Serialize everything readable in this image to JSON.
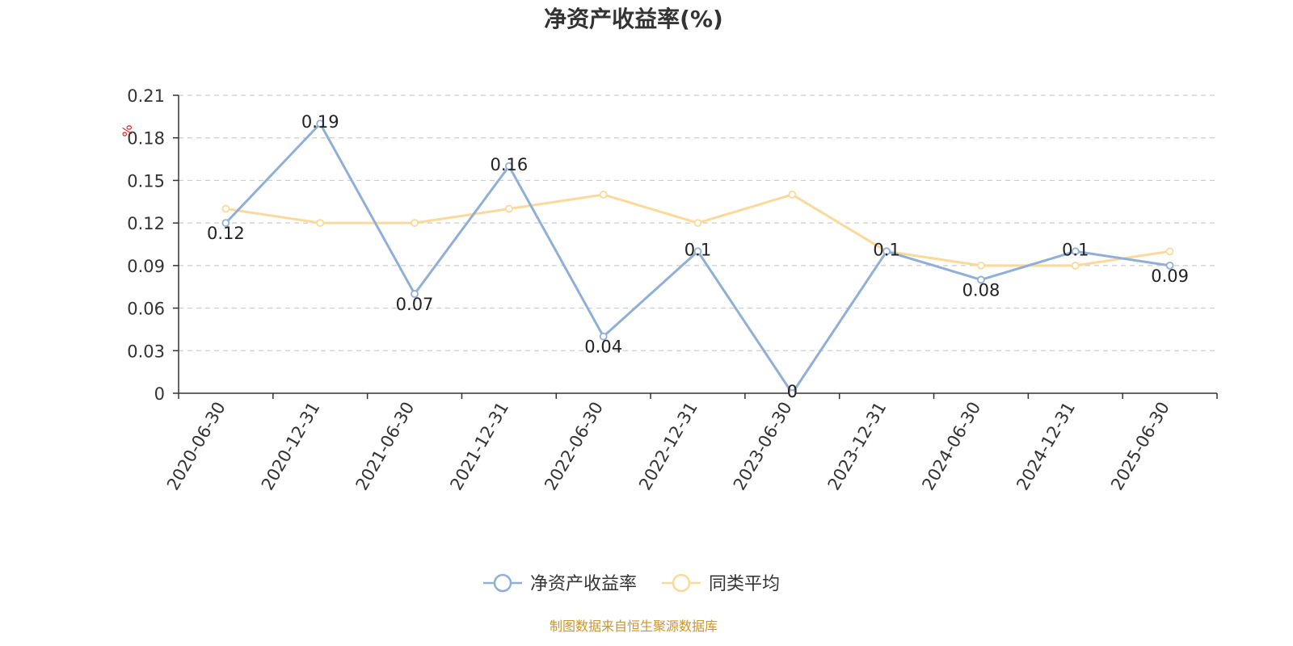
{
  "chart_data": {
    "type": "line",
    "title": "净资产收益率(%)",
    "ylabel": "%",
    "ylim": [
      0,
      0.21
    ],
    "yticks": [
      "0",
      "0.03",
      "0.06",
      "0.09",
      "0.12",
      "0.15",
      "0.18",
      "0.21"
    ],
    "grid": true,
    "legend_position": "bottom",
    "categories": [
      "2020-06-30",
      "2020-12-31",
      "2021-06-30",
      "2021-12-31",
      "2022-06-30",
      "2022-12-31",
      "2023-06-30",
      "2023-12-31",
      "2024-06-30",
      "2024-12-31",
      "2025-06-30"
    ],
    "series": [
      {
        "name": "净资产收益率",
        "color": "#8fafd8",
        "values": [
          0.12,
          0.19,
          0.07,
          0.16,
          0.04,
          0.1,
          0,
          0.1,
          0.08,
          0.1,
          0.09
        ],
        "labels": [
          "0.12",
          "0.19",
          "0.07",
          "0.16",
          "0.04",
          "0.1",
          "0",
          "0.1",
          "0.08",
          "0.1",
          "0.09"
        ]
      },
      {
        "name": "同类平均",
        "color": "#fad99a",
        "values": [
          0.13,
          0.12,
          0.12,
          0.13,
          0.14,
          0.12,
          0.14,
          0.1,
          0.09,
          0.09,
          0.1
        ]
      }
    ]
  },
  "source_note": "制图数据来自恒生聚源数据库"
}
